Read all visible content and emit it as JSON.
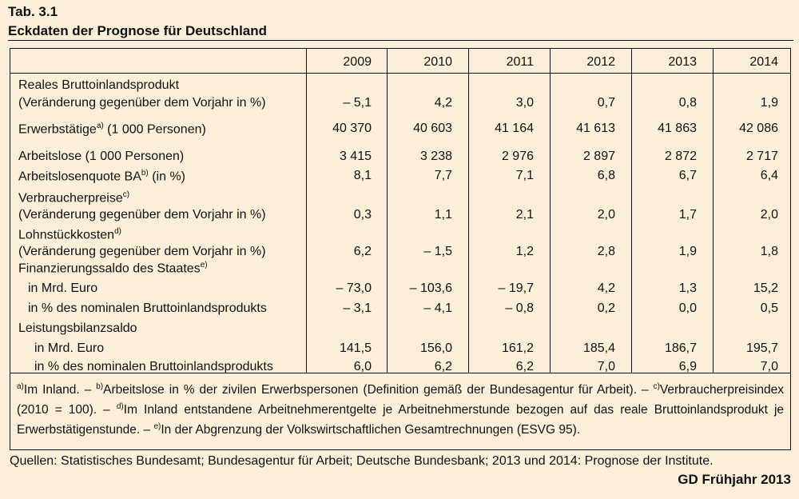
{
  "header": {
    "tab_no": "Tab. 3.1",
    "title": "Eckdaten der Prognose für Deutschland"
  },
  "years": [
    "2009",
    "2010",
    "2011",
    "2012",
    "2013",
    "2014"
  ],
  "labels": {
    "r0a": "Reales Bruttoinlandsprodukt",
    "r0b": "(Veränderung gegenüber dem Vorjahr in %)",
    "r1": "Erwerbstätige",
    "r1_sup": "a)",
    "r1_suffix": " (1 000 Personen)",
    "r2": "Arbeitslose (1 000 Personen)",
    "r3": "Arbeitslosenquote BA",
    "r3_sup": "b)",
    "r3_suffix": " (in %)",
    "r4a": "Verbraucherpreise",
    "r4a_sup": "c)",
    "r4b": "(Veränderung gegenüber dem Vorjahr in %)",
    "r5a": "Lohnstückkosten",
    "r5a_sup": "d)",
    "r5b": "(Veränderung gegenüber dem Vorjahr in %)",
    "r6": "Finanzierungssaldo des Staates",
    "r6_sup": "e)",
    "r6a": "in Mrd. Euro",
    "r6b": "in % des nominalen Bruttoinlandsprodukts",
    "r7": "Leistungsbilanzsaldo",
    "r7a": "in Mrd. Euro",
    "r7b": "in % des nominalen Bruttoinlandsprodukts"
  },
  "values": {
    "bip": [
      "– 5,1",
      "4,2",
      "3,0",
      "0,7",
      "0,8",
      "1,9"
    ],
    "erwerbstaetige": [
      "40 370",
      "40 603",
      "41 164",
      "41 613",
      "41 863",
      "42 086"
    ],
    "arbeitslose": [
      "3 415",
      "3 238",
      "2 976",
      "2 897",
      "2 872",
      "2 717"
    ],
    "quote": [
      "8,1",
      "7,7",
      "7,1",
      "6,8",
      "6,7",
      "6,4"
    ],
    "vpi": [
      "0,3",
      "1,1",
      "2,1",
      "2,0",
      "1,7",
      "2,0"
    ],
    "lohn": [
      "6,2",
      "– 1,5",
      "1,2",
      "2,8",
      "1,9",
      "1,8"
    ],
    "fin_mrd": [
      "– 73,0",
      "– 103,6",
      "– 19,7",
      "4,2",
      "1,3",
      "15,2"
    ],
    "fin_pct": [
      "– 3,1",
      "– 4,1",
      "– 0,8",
      "0,2",
      "0,0",
      "0,5"
    ],
    "lb_mrd": [
      "141,5",
      "156,0",
      "161,2",
      "185,4",
      "186,7",
      "195,7"
    ],
    "lb_pct": [
      "6,0",
      "6,2",
      "6,2",
      "7,0",
      "6,9",
      "7,0"
    ]
  },
  "footnotes": {
    "a": "a)",
    "a_text": "Im Inland. – ",
    "b": "b)",
    "b_text": "Arbeitslose in % der zivilen Erwerbspersonen (Definition gemäß der Bundesagentur für Arbeit). – ",
    "c": "c)",
    "c_text": "Verbraucherpreisindex (2010 = 100). – ",
    "d": "d)",
    "d_text": "Im Inland entstandene Arbeitnehmerentgelte je Arbeitnehmerstunde bezogen auf das reale Bruttoinlandsprodukt je Erwerbstätigenstunde. – ",
    "e": "e)",
    "e_text": "In der Abgrenzung der Volkswirtschaftlichen Gesamtrechnungen (ESVG 95)."
  },
  "sources": "Quellen: Statistisches Bundesamt; Bundesagentur für Arbeit; Deutsche Bundesbank; 2013 und 2014: Prognose der Institute.",
  "credit": "GD Frühjahr 2013"
}
